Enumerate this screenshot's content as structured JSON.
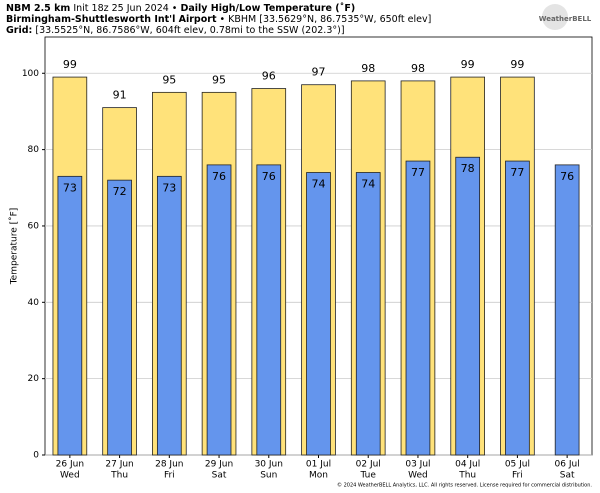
{
  "header": {
    "line1": [
      "NBM 2.5 km",
      " Init 18z 25 Jun 2024 • ",
      "Daily High/Low Temperature (˚F)"
    ],
    "line2": [
      "Birmingham-Shuttlesworth Int'l Airport",
      " • KBHM [33.5629°N, 86.7535°W, 650ft elev]"
    ],
    "line3": [
      "Grid:",
      " [33.5525°N, 86.7586°W, 604ft elev, 0.78mi to the SSW (202.3°)]"
    ],
    "logo": "WeatherBELL",
    "footer": "© 2024 WeatherBELL Analytics, LLC. All rights reserved. License required for commercial distribution."
  },
  "chart_data": {
    "type": "bar",
    "y_label": "Temperature [˚F]",
    "categories": [
      "26 Jun",
      "27 Jun",
      "28 Jun",
      "29 Jun",
      "30 Jun",
      "01 Jul",
      "02 Jul",
      "03 Jul",
      "04 Jul",
      "05 Jul",
      "06 Jul"
    ],
    "days": [
      "Wed",
      "Thu",
      "Fri",
      "Sat",
      "Sun",
      "Mon",
      "Tue",
      "Wed",
      "Thu",
      "Fri",
      "Sat"
    ],
    "series": [
      {
        "color": "#ffe27a",
        "values": [
          99,
          91,
          95,
          95,
          96,
          97,
          98,
          98,
          99,
          99,
          null
        ]
      },
      {
        "color": "#6495ed",
        "values": [
          73,
          72,
          73,
          76,
          76,
          74,
          74,
          77,
          78,
          77,
          76
        ]
      }
    ],
    "ylim": [
      0,
      109.5
    ],
    "yticks": [
      0,
      20,
      40,
      60,
      80,
      100
    ],
    "grid": true
  }
}
